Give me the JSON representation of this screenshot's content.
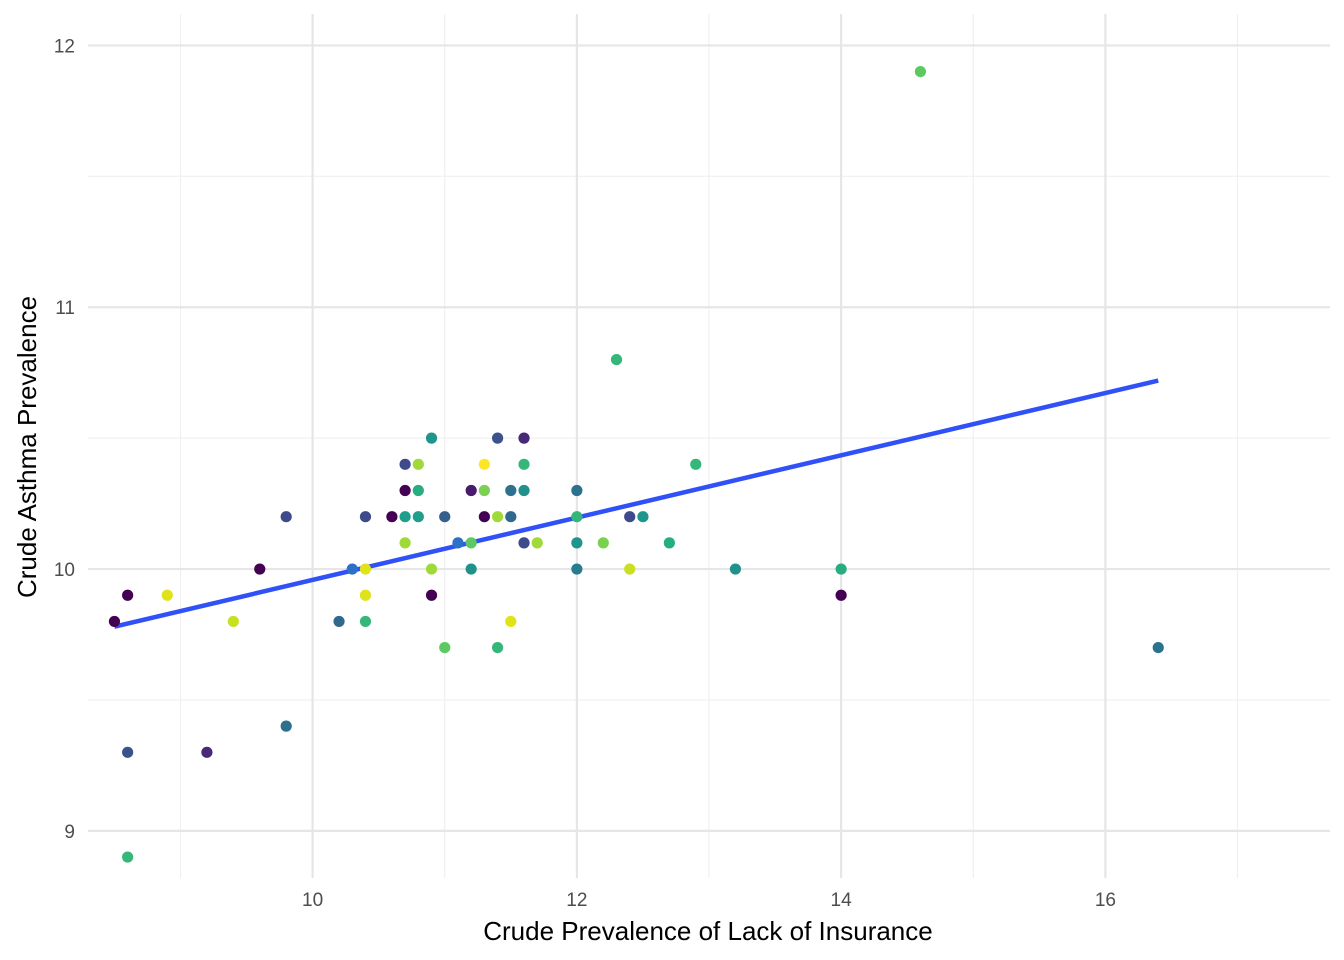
{
  "chart_data": {
    "type": "scatter",
    "xlabel": "Crude Prevalence of Lack of Insurance",
    "ylabel": "Crude Asthma Prevalence",
    "xlim": [
      8.3,
      17.7
    ],
    "ylim": [
      8.82,
      12.12
    ],
    "x_ticks": [
      10,
      12,
      14,
      16
    ],
    "y_ticks": [
      9,
      10,
      11,
      12
    ],
    "x_tick_labels": [
      "10",
      "12",
      "14",
      "16"
    ],
    "y_tick_labels": [
      "9",
      "10",
      "11",
      "12"
    ],
    "x_minor_ticks": [
      9,
      11,
      13,
      15,
      17
    ],
    "y_minor_ticks": [
      9.5,
      10.5,
      11.5
    ],
    "grid": true,
    "legend": "none",
    "trend_line": {
      "type": "linear",
      "color": "#3050f8",
      "x": [
        8.5,
        16.4
      ],
      "y": [
        9.78,
        10.72
      ]
    },
    "points": [
      {
        "x": 8.5,
        "y": 9.8,
        "color": "#440154"
      },
      {
        "x": 8.6,
        "y": 9.9,
        "color": "#440154"
      },
      {
        "x": 8.6,
        "y": 9.3,
        "color": "#3b528b"
      },
      {
        "x": 8.6,
        "y": 8.9,
        "color": "#35b779"
      },
      {
        "x": 8.9,
        "y": 9.9,
        "color": "#dfe318"
      },
      {
        "x": 9.2,
        "y": 9.3,
        "color": "#482878"
      },
      {
        "x": 9.4,
        "y": 9.8,
        "color": "#c8e020"
      },
      {
        "x": 9.6,
        "y": 10.0,
        "color": "#440154"
      },
      {
        "x": 9.8,
        "y": 10.2,
        "color": "#3e4a89"
      },
      {
        "x": 9.8,
        "y": 9.4,
        "color": "#2c6f8e"
      },
      {
        "x": 10.2,
        "y": 9.8,
        "color": "#31688e"
      },
      {
        "x": 10.3,
        "y": 10.0,
        "color": "#2d70c8"
      },
      {
        "x": 10.4,
        "y": 10.2,
        "color": "#3e4a89"
      },
      {
        "x": 10.4,
        "y": 10.0,
        "color": "#dfe318"
      },
      {
        "x": 10.4,
        "y": 9.9,
        "color": "#dfe318"
      },
      {
        "x": 10.4,
        "y": 9.8,
        "color": "#35b779"
      },
      {
        "x": 10.6,
        "y": 10.2,
        "color": "#440154"
      },
      {
        "x": 10.7,
        "y": 10.4,
        "color": "#3e4a89"
      },
      {
        "x": 10.7,
        "y": 10.3,
        "color": "#440154"
      },
      {
        "x": 10.7,
        "y": 10.2,
        "color": "#1f9e89"
      },
      {
        "x": 10.7,
        "y": 10.1,
        "color": "#a0da39"
      },
      {
        "x": 10.8,
        "y": 10.4,
        "color": "#a0da39"
      },
      {
        "x": 10.8,
        "y": 10.3,
        "color": "#26ad81"
      },
      {
        "x": 10.8,
        "y": 10.2,
        "color": "#1f9e89"
      },
      {
        "x": 10.9,
        "y": 10.5,
        "color": "#1f968b"
      },
      {
        "x": 10.9,
        "y": 10.0,
        "color": "#a0da39"
      },
      {
        "x": 10.9,
        "y": 9.9,
        "color": "#440154"
      },
      {
        "x": 11.0,
        "y": 10.2,
        "color": "#355f8d"
      },
      {
        "x": 11.0,
        "y": 9.7,
        "color": "#5ec962"
      },
      {
        "x": 11.1,
        "y": 10.1,
        "color": "#2d70c8"
      },
      {
        "x": 11.2,
        "y": 10.3,
        "color": "#481a6c"
      },
      {
        "x": 11.2,
        "y": 10.1,
        "color": "#5ec962"
      },
      {
        "x": 11.2,
        "y": 10.0,
        "color": "#21918c"
      },
      {
        "x": 11.3,
        "y": 10.4,
        "color": "#fde725"
      },
      {
        "x": 11.3,
        "y": 10.3,
        "color": "#7ad151"
      },
      {
        "x": 11.3,
        "y": 10.2,
        "color": "#440154"
      },
      {
        "x": 11.4,
        "y": 10.5,
        "color": "#3b528b"
      },
      {
        "x": 11.4,
        "y": 10.2,
        "color": "#a0da39"
      },
      {
        "x": 11.4,
        "y": 9.7,
        "color": "#35b779"
      },
      {
        "x": 11.5,
        "y": 10.3,
        "color": "#2c728e"
      },
      {
        "x": 11.5,
        "y": 10.2,
        "color": "#31688e"
      },
      {
        "x": 11.5,
        "y": 9.8,
        "color": "#dfe318"
      },
      {
        "x": 11.6,
        "y": 10.5,
        "color": "#482878"
      },
      {
        "x": 11.6,
        "y": 10.4,
        "color": "#35b779"
      },
      {
        "x": 11.6,
        "y": 10.3,
        "color": "#21918c"
      },
      {
        "x": 11.6,
        "y": 10.1,
        "color": "#3e4a89"
      },
      {
        "x": 11.7,
        "y": 10.1,
        "color": "#a0da39"
      },
      {
        "x": 12.0,
        "y": 10.3,
        "color": "#2c728e"
      },
      {
        "x": 12.0,
        "y": 10.2,
        "color": "#35b779"
      },
      {
        "x": 12.0,
        "y": 10.1,
        "color": "#1f968b"
      },
      {
        "x": 12.0,
        "y": 10.0,
        "color": "#287c8e"
      },
      {
        "x": 12.2,
        "y": 10.1,
        "color": "#7ad151"
      },
      {
        "x": 12.3,
        "y": 10.8,
        "color": "#35b779"
      },
      {
        "x": 12.4,
        "y": 10.2,
        "color": "#3e4a89"
      },
      {
        "x": 12.4,
        "y": 10.0,
        "color": "#c8e020"
      },
      {
        "x": 12.5,
        "y": 10.2,
        "color": "#1f968b"
      },
      {
        "x": 12.7,
        "y": 10.1,
        "color": "#26ad81"
      },
      {
        "x": 12.9,
        "y": 10.4,
        "color": "#35b779"
      },
      {
        "x": 13.2,
        "y": 10.0,
        "color": "#21918c"
      },
      {
        "x": 14.0,
        "y": 10.0,
        "color": "#26ad81"
      },
      {
        "x": 14.0,
        "y": 9.9,
        "color": "#440154"
      },
      {
        "x": 14.6,
        "y": 11.9,
        "color": "#5ec962"
      },
      {
        "x": 16.4,
        "y": 9.7,
        "color": "#2c728e"
      }
    ]
  }
}
